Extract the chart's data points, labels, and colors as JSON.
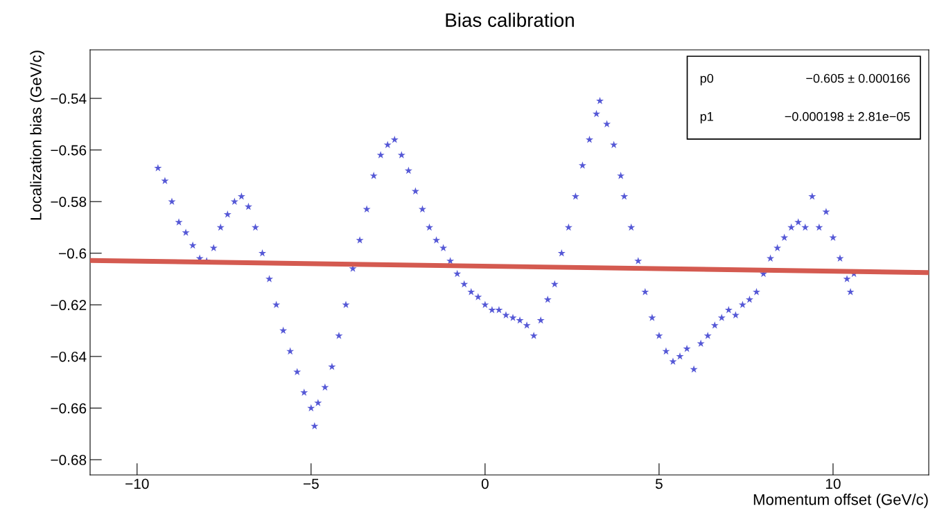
{
  "chart_data": {
    "type": "scatter",
    "title": "Bias calibration",
    "xlabel": "Momentum offset (GeV/c)",
    "ylabel": "Localization bias (GeV/c)",
    "xlim": [
      -11.35,
      12.75
    ],
    "ylim": [
      -0.6859,
      -0.5212
    ],
    "xticks": [
      {
        "value": -10,
        "label": "−10"
      },
      {
        "value": -5,
        "label": "−5"
      },
      0,
      5,
      10
    ],
    "yticks": [
      {
        "value": -0.68,
        "label": "−0.68"
      },
      {
        "value": -0.66,
        "label": "−0.66"
      },
      {
        "value": -0.64,
        "label": "−0.64"
      },
      {
        "value": -0.62,
        "label": "−0.62"
      },
      {
        "value": -0.6,
        "label": "−0.6"
      },
      {
        "value": -0.58,
        "label": "−0.58"
      },
      {
        "value": -0.56,
        "label": "−0.56"
      },
      {
        "value": -0.54,
        "label": "−0.54"
      }
    ],
    "grid": false,
    "legend": false,
    "series": [
      {
        "color": "#5558d6",
        "marker": "star",
        "x": [
          -9.4,
          -9.2,
          -9.0,
          -8.8,
          -8.6,
          -8.4,
          -8.2,
          -8.0,
          -7.8,
          -7.6,
          -7.4,
          -7.2,
          -7.0,
          -6.8,
          -6.6,
          -6.4,
          -6.2,
          -6.0,
          -5.8,
          -5.6,
          -5.4,
          -5.2,
          -5.0,
          -4.9,
          -4.8,
          -4.6,
          -4.4,
          -4.2,
          -4.0,
          -3.8,
          -3.6,
          -3.4,
          -3.2,
          -3.0,
          -2.8,
          -2.6,
          -2.4,
          -2.2,
          -2.0,
          -1.8,
          -1.6,
          -1.4,
          -1.2,
          -1.0,
          -0.8,
          -0.6,
          -0.4,
          -0.2,
          0,
          0.2,
          0.4,
          0.6,
          0.8,
          1.0,
          1.2,
          1.4,
          1.6,
          1.8,
          2.0,
          2.2,
          2.4,
          2.6,
          2.8,
          3.0,
          3.2,
          3.3,
          3.5,
          3.7,
          3.9,
          4.0,
          4.2,
          4.4,
          4.6,
          4.8,
          5.0,
          5.2,
          5.4,
          5.6,
          5.8,
          6.0,
          6.2,
          6.4,
          6.6,
          6.8,
          7.0,
          7.2,
          7.4,
          7.6,
          7.8,
          8.0,
          8.2,
          8.4,
          8.6,
          8.8,
          9.0,
          9.2,
          9.4,
          9.6,
          9.8,
          10.0,
          10.2,
          10.4,
          10.5,
          10.6
        ],
        "values": [
          -0.567,
          -0.572,
          -0.58,
          -0.588,
          -0.592,
          -0.597,
          -0.602,
          -0.603,
          -0.598,
          -0.59,
          -0.585,
          -0.58,
          -0.578,
          -0.582,
          -0.59,
          -0.6,
          -0.61,
          -0.62,
          -0.63,
          -0.638,
          -0.646,
          -0.654,
          -0.66,
          -0.667,
          -0.658,
          -0.652,
          -0.644,
          -0.632,
          -0.62,
          -0.606,
          -0.595,
          -0.583,
          -0.57,
          -0.562,
          -0.558,
          -0.556,
          -0.562,
          -0.568,
          -0.576,
          -0.583,
          -0.59,
          -0.595,
          -0.598,
          -0.603,
          -0.608,
          -0.612,
          -0.615,
          -0.617,
          -0.62,
          -0.622,
          -0.622,
          -0.624,
          -0.625,
          -0.626,
          -0.628,
          -0.632,
          -0.626,
          -0.618,
          -0.612,
          -0.6,
          -0.59,
          -0.578,
          -0.566,
          -0.556,
          -0.546,
          -0.541,
          -0.55,
          -0.558,
          -0.57,
          -0.578,
          -0.59,
          -0.603,
          -0.615,
          -0.625,
          -0.632,
          -0.638,
          -0.642,
          -0.64,
          -0.637,
          -0.645,
          -0.635,
          -0.632,
          -0.628,
          -0.625,
          -0.622,
          -0.624,
          -0.62,
          -0.618,
          -0.615,
          -0.608,
          -0.602,
          -0.598,
          -0.594,
          -0.59,
          -0.588,
          -0.59,
          -0.578,
          -0.59,
          -0.584,
          -0.594,
          -0.602,
          -0.61,
          -0.615,
          -0.608
        ]
      },
      {
        "type": "line",
        "color": "#d45a50",
        "x": [
          -11.35,
          12.75
        ],
        "values": [
          -0.6028,
          -0.6075
        ]
      }
    ],
    "annotations": [
      "p0",
      "−0.605 ± 0.000166",
      "p1",
      "−0.000198 ± 2.81e−05"
    ]
  }
}
